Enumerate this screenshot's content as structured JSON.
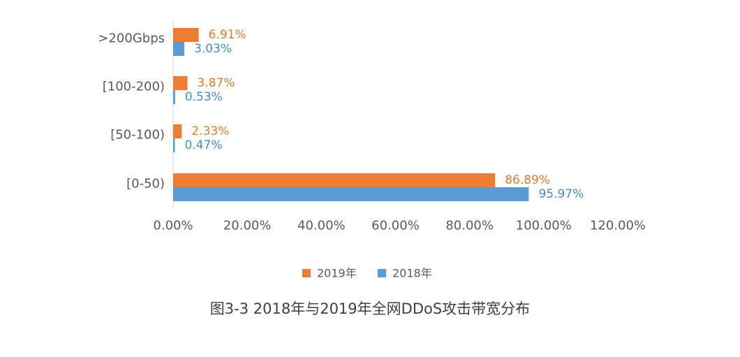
{
  "caption": "图3-3  2018年与2019年全网DDoS攻击带宽分布",
  "colors": {
    "series_2019": "#ED7D31",
    "series_2018": "#5B9BD5",
    "label_2019": "#E07B2A",
    "label_2018": "#3F8FC4",
    "axis_text": "#595959",
    "axis_line": "#d9d9d9"
  },
  "chart_data": {
    "type": "bar",
    "orientation": "horizontal",
    "categories": [
      ">200Gbps",
      "[100-200)",
      "[50-100)",
      "[0-50)"
    ],
    "series": [
      {
        "name": "2019年",
        "values": [
          6.91,
          3.87,
          2.33,
          86.89
        ],
        "labels": [
          "6.91%",
          "3.87%",
          "2.33%",
          "86.89%"
        ]
      },
      {
        "name": "2018年",
        "values": [
          3.03,
          0.53,
          0.47,
          95.97
        ],
        "labels": [
          "3.03%",
          "0.53%",
          "0.47%",
          "95.97%"
        ]
      }
    ],
    "xlim": [
      0,
      120
    ],
    "xticks": [
      "0.00%",
      "20.00%",
      "40.00%",
      "60.00%",
      "80.00%",
      "100.00%",
      "120.00%"
    ],
    "grid": false,
    "legend_position": "bottom"
  }
}
